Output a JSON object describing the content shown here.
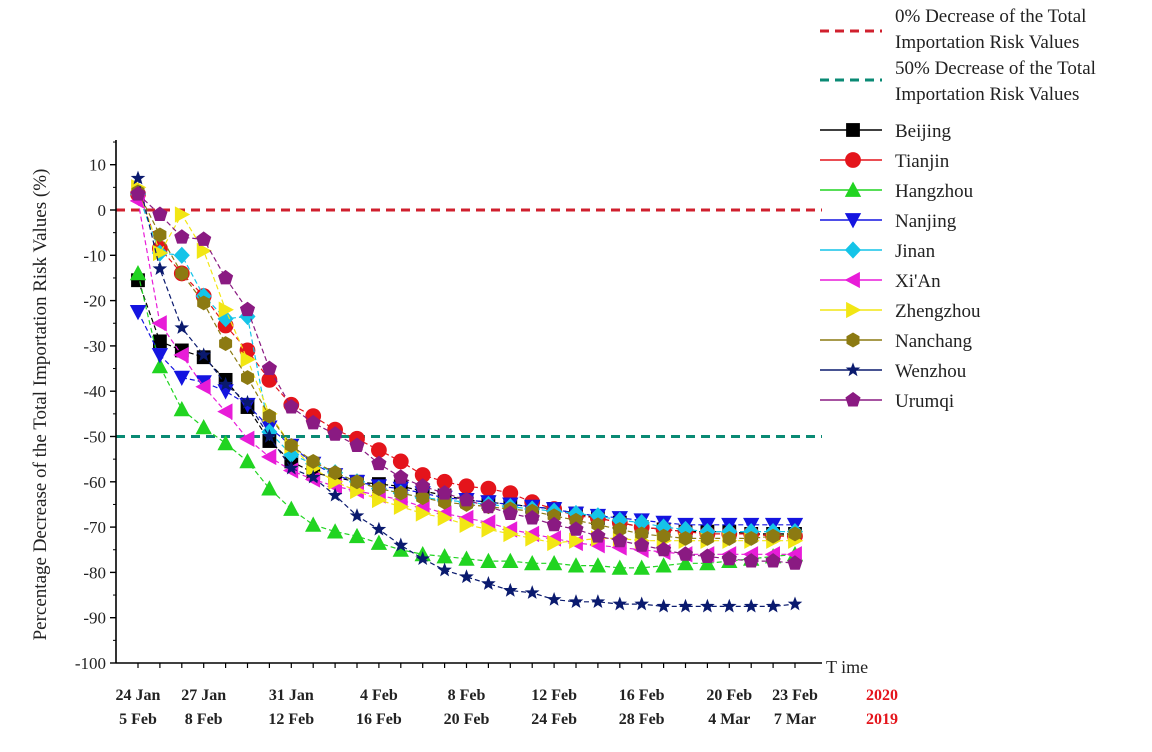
{
  "chart_data": {
    "type": "line",
    "title": "",
    "xlabel": "T ime",
    "ylabel": "Percentage Decrease of the Total Importation Risk Values (%)",
    "ylim": [
      -100,
      15
    ],
    "yticks": [
      10,
      0,
      -10,
      -20,
      -30,
      -40,
      -50,
      -60,
      -70,
      -80,
      -90,
      -100
    ],
    "ytick_labels": [
      "10",
      "0",
      "-10",
      "-20",
      "-30",
      "-40",
      "-50",
      "-60",
      "-70",
      "-80",
      "-90",
      "-100"
    ],
    "x_tick_labels_2020": [
      "24 Jan",
      "27 Jan",
      "31 Jan",
      "4 Feb",
      "8 Feb",
      "12 Feb",
      "16 Feb",
      "20 Feb",
      "23 Feb"
    ],
    "x_tick_labels_2019": [
      "5 Feb",
      "8 Feb",
      "12 Feb",
      "16 Feb",
      "20 Feb",
      "24 Feb",
      "28 Feb",
      "4 Mar",
      "7 Mar"
    ],
    "x_tick_index": [
      0,
      3,
      7,
      11,
      15,
      19,
      23,
      27,
      30
    ],
    "year_labels": [
      "2020",
      "2019"
    ],
    "legend_position": "right",
    "grid": false,
    "reference_lines": [
      {
        "name": "0% Decrease of the Total Importation Risk Values",
        "y": 0,
        "color": "#d0202e"
      },
      {
        "name": "50% Decrease of the Total Importation Risk Values",
        "y": -50,
        "color": "#0a8a74"
      }
    ],
    "series": [
      {
        "name": "Beijing",
        "color": "#000000",
        "marker": "square",
        "values": [
          -15.5,
          -29,
          -31,
          -32.5,
          -37.5,
          -43.5,
          -51,
          -55.5,
          -58,
          -59,
          -60,
          -60.5,
          -61,
          -62,
          -63,
          -64,
          -64.5,
          -65,
          -65.5,
          -66,
          -67,
          -68,
          -69,
          -70,
          -70.5,
          -71,
          -71,
          -71,
          -71.5,
          -71.5,
          -71.5
        ]
      },
      {
        "name": "Tianjin",
        "color": "#e4141b",
        "marker": "circle",
        "values": [
          3.5,
          -8.5,
          -14,
          -19,
          -25.5,
          -31,
          -37.5,
          -43,
          -45.5,
          -48.5,
          -50.5,
          -53,
          -55.5,
          -58.5,
          -60,
          -61,
          -61.5,
          -62.5,
          -64.5,
          -66,
          -67.5,
          -68,
          -69,
          -70,
          -70.5,
          -71,
          -71.5,
          -71.5,
          -71.5,
          -72,
          -72
        ]
      },
      {
        "name": "Hangzhou",
        "color": "#21d421",
        "marker": "triangle-up",
        "values": [
          -14,
          -34.5,
          -44,
          -48,
          -51.5,
          -55.5,
          -61.5,
          -66,
          -69.5,
          -71,
          -72,
          -73.5,
          -75,
          -76,
          -76.5,
          -77,
          -77.5,
          -77.5,
          -78,
          -78,
          -78.5,
          -78.5,
          -79,
          -79,
          -78.5,
          -78,
          -78,
          -77.5,
          -77,
          -76.5,
          -76
        ]
      },
      {
        "name": "Nanjing",
        "color": "#1414e0",
        "marker": "triangle-down",
        "values": [
          -22.5,
          -32,
          -37,
          -38,
          -40,
          -43,
          -48,
          -52,
          -56,
          -58.5,
          -60,
          -61,
          -61.5,
          -62.5,
          -63.5,
          -64,
          -64.5,
          -65,
          -65.5,
          -66,
          -67,
          -67.5,
          -68,
          -68.5,
          -69,
          -69.5,
          -69.5,
          -69.5,
          -69.5,
          -69.5,
          -69.5
        ]
      },
      {
        "name": "Jinan",
        "color": "#14c4e8",
        "marker": "diamond",
        "values": [
          3.5,
          -9.5,
          -10,
          -19,
          -24,
          -23.5,
          -49,
          -54,
          -56,
          -58,
          -60,
          -61.5,
          -62.5,
          -63.5,
          -64,
          -64.5,
          -65,
          -65.5,
          -66,
          -66.5,
          -67,
          -67.5,
          -68.5,
          -69,
          -70,
          -70.5,
          -71,
          -71,
          -71,
          -71,
          -71
        ]
      },
      {
        "name": "Xi'An",
        "color": "#e81cd8",
        "marker": "triangle-left",
        "values": [
          2,
          -25,
          -32,
          -39,
          -44.5,
          -50.5,
          -54.5,
          -57.5,
          -59.5,
          -61,
          -62,
          -63,
          -64,
          -65.5,
          -67,
          -68,
          -69,
          -70.5,
          -71.5,
          -72.5,
          -73.5,
          -74,
          -74.5,
          -75,
          -75.5,
          -76,
          -76,
          -76,
          -76,
          -76,
          -76
        ]
      },
      {
        "name": "Zhengzhou",
        "color": "#f2e614",
        "marker": "triangle-right",
        "values": [
          5,
          -9.5,
          -1,
          -9,
          -22,
          -33,
          -45,
          -52,
          -57,
          -60,
          -62,
          -64,
          -65.5,
          -67,
          -68,
          -69.5,
          -70.5,
          -71.5,
          -72.5,
          -73.5,
          -73,
          -72.5,
          -72.5,
          -73,
          -73,
          -73,
          -73,
          -73,
          -73,
          -73,
          -73
        ]
      },
      {
        "name": "Nanchang",
        "color": "#8c7a12",
        "marker": "hexagon",
        "values": [
          4,
          -5.5,
          -14,
          -20.5,
          -29.5,
          -37,
          -45.5,
          -52,
          -55.5,
          -58,
          -60,
          -61.5,
          -62.5,
          -63.5,
          -64.5,
          -65,
          -65.5,
          -66,
          -66.5,
          -67.5,
          -68.5,
          -69.5,
          -70.5,
          -71.5,
          -72,
          -72.5,
          -72.5,
          -72.5,
          -72.5,
          -72,
          -71.5
        ]
      },
      {
        "name": "Wenzhou",
        "color": "#0a1a6e",
        "marker": "star",
        "values": [
          7,
          -13,
          -26,
          -32,
          -38.5,
          -42.5,
          -50,
          -57,
          -59,
          -63,
          -67.5,
          -70.5,
          -74,
          -77,
          -79.5,
          -81,
          -82.5,
          -84,
          -84.5,
          -86,
          -86.5,
          -86.5,
          -87,
          -87,
          -87.5,
          -87.5,
          -87.5,
          -87.5,
          -87.5,
          -87.5,
          -87
        ]
      },
      {
        "name": "Urumqi",
        "color": "#8a1a82",
        "marker": "pentagon",
        "values": [
          3.5,
          -1,
          -6,
          -6.5,
          -15,
          -22,
          -35,
          -43.5,
          -47,
          -49.5,
          -52,
          -56,
          -59,
          -61,
          -62.5,
          -64,
          -65.5,
          -67,
          -68,
          -69.5,
          -70.5,
          -72,
          -73,
          -74,
          -75,
          -76,
          -76.5,
          -77,
          -77.5,
          -77.5,
          -78
        ]
      }
    ]
  }
}
